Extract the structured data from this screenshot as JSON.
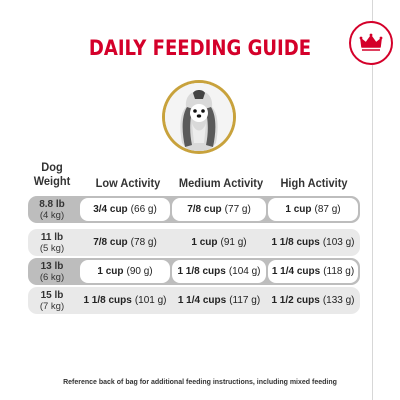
{
  "title": "DAILY FEEDING GUIDE",
  "logo_icon": "royal-canin-crown-logo",
  "image_icon": "shih-tzu-dog-portrait",
  "colors": {
    "brand_red": "#d4002a",
    "gold_ring": "#c8a23c",
    "row_dark": "#bdbdbd",
    "row_light": "#e9e9e9",
    "cell_white": "#ffffff"
  },
  "table": {
    "header_weight": [
      "Dog",
      "Weight"
    ],
    "headers": [
      "Low Activity",
      "Medium Activity",
      "High Activity"
    ],
    "rows": [
      {
        "lb": "8.8 lb",
        "kg": "(4 kg)",
        "cells": [
          {
            "amount": "3/4 cup",
            "metric": "(66 g)"
          },
          {
            "amount": "7/8 cup",
            "metric": "(77 g)"
          },
          {
            "amount": "1 cup",
            "metric": "(87 g)"
          }
        ]
      },
      {
        "lb": "11 lb",
        "kg": "(5 kg)",
        "cells": [
          {
            "amount": "7/8 cup",
            "metric": "(78 g)"
          },
          {
            "amount": "1 cup",
            "metric": "(91 g)"
          },
          {
            "amount": "1 1/8 cups",
            "metric": "(103 g)"
          }
        ]
      },
      {
        "lb": "13 lb",
        "kg": "(6 kg)",
        "cells": [
          {
            "amount": "1 cup",
            "metric": "(90 g)"
          },
          {
            "amount": "1 1/8 cups",
            "metric": "(104 g)"
          },
          {
            "amount": "1 1/4 cups",
            "metric": "(118 g)"
          }
        ]
      },
      {
        "lb": "15 lb",
        "kg": "(7 kg)",
        "cells": [
          {
            "amount": "1 1/8 cups",
            "metric": "(101 g)"
          },
          {
            "amount": "1 1/4 cups",
            "metric": "(117 g)"
          },
          {
            "amount": "1 1/2 cups",
            "metric": "(133 g)"
          }
        ]
      }
    ]
  },
  "footnote": "Reference back of bag for additional feeding instructions, including mixed feeding"
}
